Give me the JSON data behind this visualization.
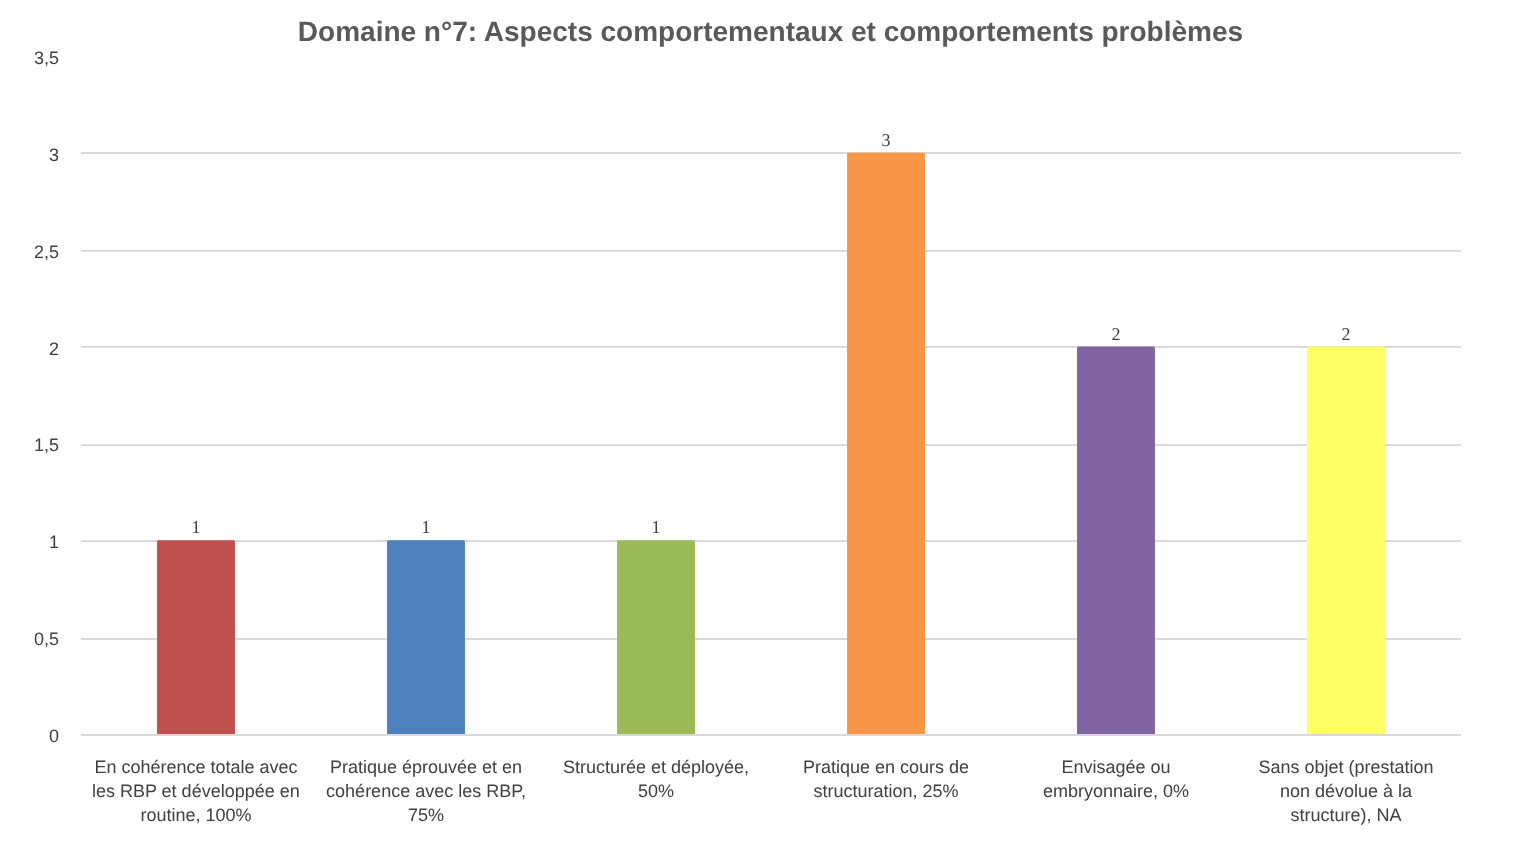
{
  "chart_data": {
    "type": "bar",
    "title": "Domaine n°7: Aspects comportementaux et comportements problèmes",
    "categories": [
      "En cohérence totale avec les RBP et développée en routine, 100%",
      "Pratique éprouvée et en cohérence avec les RBP, 75%",
      "Structurée et déployée, 50%",
      "Pratique en cours de structuration, 25%",
      "Envisagée ou embryonnaire, 0%",
      "Sans objet (prestation non dévolue à la structure), NA"
    ],
    "values": [
      1,
      1,
      1,
      3,
      2,
      2
    ],
    "colors": [
      "#c0504d",
      "#4f81bd",
      "#9bbb59",
      "#f79646",
      "#8064a2",
      "#ffff66"
    ],
    "ylim": [
      0,
      3.5
    ],
    "yticks": [
      0,
      {
        "value": 0.5,
        "label": "0,5"
      },
      1,
      {
        "value": 1.5,
        "label": "1,5"
      },
      2,
      {
        "value": 2.5,
        "label": "2,5"
      },
      3,
      {
        "value": 3.5,
        "label": "3,5"
      }
    ],
    "grid": "y",
    "data_labels": true
  }
}
